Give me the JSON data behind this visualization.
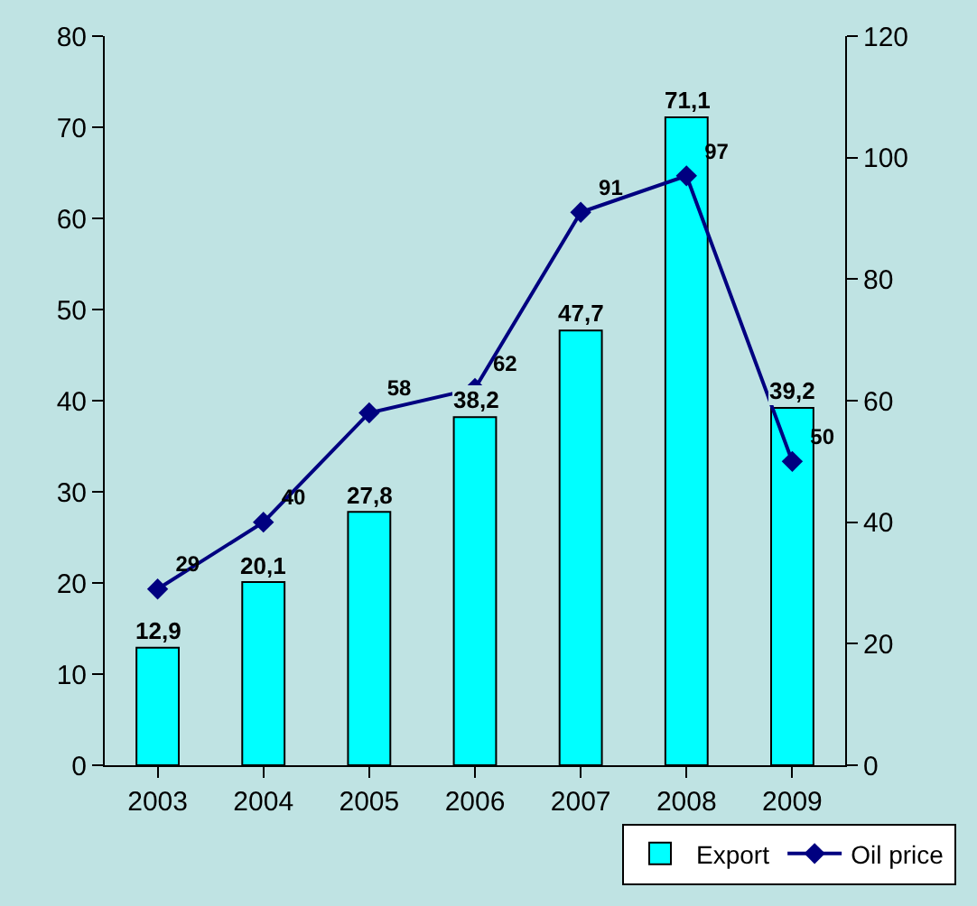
{
  "chart_data": {
    "type": "bar",
    "categories": [
      "2003",
      "2004",
      "2005",
      "2006",
      "2007",
      "2008",
      "2009"
    ],
    "series": [
      {
        "name": "Export",
        "color": "#00ffff",
        "values": [
          12.9,
          20.1,
          27.8,
          38.2,
          47.7,
          71.1,
          39.2
        ],
        "value_labels": [
          "12,9",
          "20,1",
          "27,8",
          "38,2",
          "47,7",
          "71,1",
          "39,2"
        ]
      },
      {
        "name": "Oil price",
        "type": "line",
        "axis": "y2",
        "color": "#000080",
        "marker": "diamond",
        "values": [
          29,
          40,
          58,
          62,
          91,
          97,
          50
        ],
        "value_labels": [
          "29",
          "40",
          "58",
          "62",
          "91",
          "97",
          "50"
        ]
      }
    ],
    "ylim": [
      0,
      80
    ],
    "yticks": [
      0,
      10,
      20,
      30,
      40,
      50,
      60,
      70,
      80
    ],
    "y2lim": [
      0,
      120
    ],
    "y2ticks": [
      0,
      20,
      40,
      60,
      80,
      100,
      120
    ],
    "grid": false,
    "legend": "bottom right"
  }
}
